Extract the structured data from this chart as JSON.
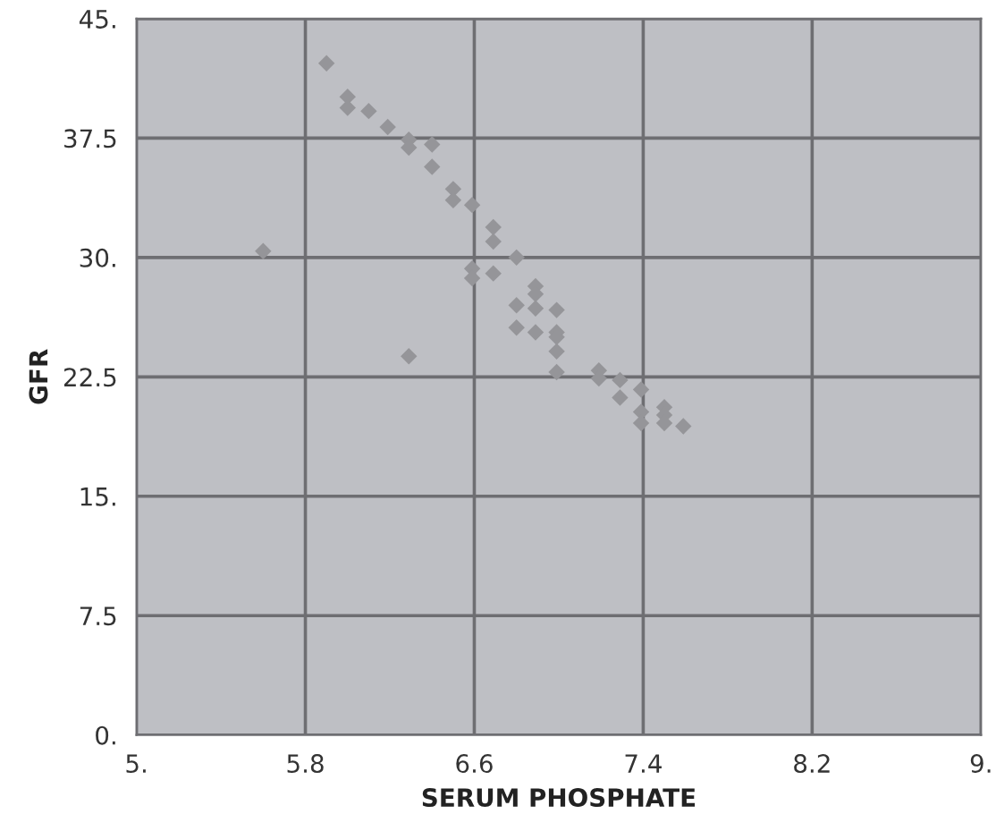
{
  "chart_data": {
    "type": "scatter",
    "xlabel": "SERUM PHOSPHATE",
    "ylabel": "GFR",
    "x": [
      5.9,
      6.0,
      6.0,
      6.1,
      6.19,
      6.29,
      6.29,
      6.4,
      6.4,
      6.5,
      6.5,
      6.59,
      6.69,
      6.69,
      6.8,
      5.6,
      6.59,
      6.59,
      6.69,
      6.29,
      6.89,
      6.89,
      6.8,
      6.89,
      6.99,
      6.8,
      6.89,
      6.99,
      6.99,
      6.99,
      6.99,
      7.19,
      7.19,
      7.29,
      7.29,
      7.39,
      7.39,
      7.39,
      7.5,
      7.5,
      7.5,
      7.59
    ],
    "series": [
      {
        "color": "#959599",
        "values": [
          42.2,
          40.1,
          39.4,
          39.2,
          38.2,
          37.4,
          36.9,
          37.1,
          35.7,
          34.3,
          33.6,
          33.3,
          31.9,
          31.0,
          30.0,
          30.4,
          29.3,
          28.7,
          29.0,
          23.8,
          28.2,
          27.7,
          27.0,
          26.8,
          26.7,
          25.6,
          25.3,
          25.3,
          25.0,
          24.1,
          22.8,
          22.9,
          22.4,
          22.3,
          21.2,
          21.7,
          20.3,
          19.6,
          20.6,
          20.1,
          19.6,
          19.4
        ]
      }
    ],
    "marker": "diamond",
    "grid": true,
    "xlim": [
      5,
      9
    ],
    "xticks": [
      {
        "value": 5,
        "label": "5."
      },
      5.8,
      6.6,
      7.4,
      8.2,
      {
        "value": 9,
        "label": "9."
      }
    ],
    "ylim": [
      0,
      45
    ],
    "yticks": [
      {
        "value": 0,
        "label": "0."
      },
      7.5,
      {
        "value": 15,
        "label": "15."
      },
      22.5,
      {
        "value": 30,
        "label": "30."
      },
      37.5,
      {
        "value": 45,
        "label": "45."
      }
    ]
  }
}
